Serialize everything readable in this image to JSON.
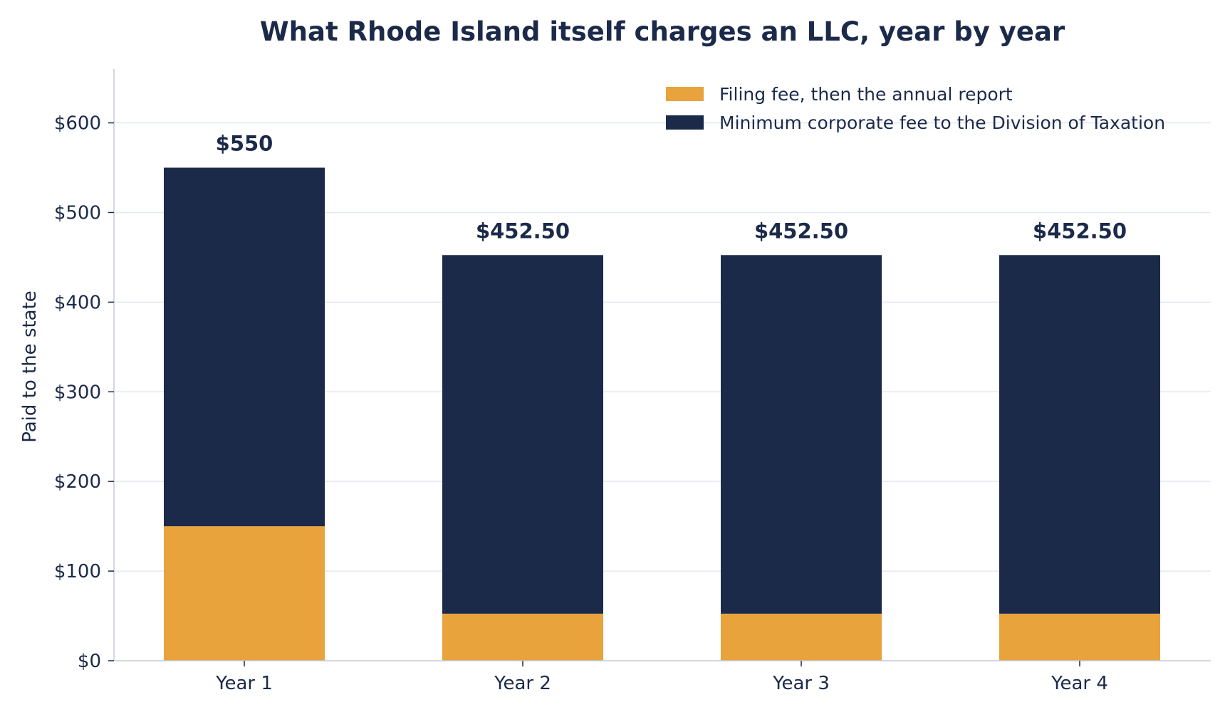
{
  "chart_data": {
    "type": "bar",
    "stacked": true,
    "title": "What Rhode Island itself charges an LLC, year by year",
    "xlabel": "",
    "ylabel": "Paid to the state",
    "categories": [
      "Year 1",
      "Year 2",
      "Year 3",
      "Year 4"
    ],
    "series": [
      {
        "name": "Filing fee, then the annual report",
        "values": [
          150,
          52.5,
          52.5,
          52.5
        ],
        "color": "#e8a33c"
      },
      {
        "name": "Minimum corporate fee to the Division of Taxation",
        "values": [
          400,
          400,
          400,
          400
        ],
        "color": "#1c2a4a"
      }
    ],
    "totals_labels": [
      "$550",
      "$452.50",
      "$452.50",
      "$452.50"
    ],
    "ylim": [
      0,
      660
    ],
    "yticks": [
      0,
      100,
      200,
      300,
      400,
      500,
      600
    ],
    "ytick_labels": [
      "$0",
      "$100",
      "$200",
      "$300",
      "$400",
      "$500",
      "$600"
    ],
    "grid": "horizontal",
    "legend_position": "top-right"
  }
}
